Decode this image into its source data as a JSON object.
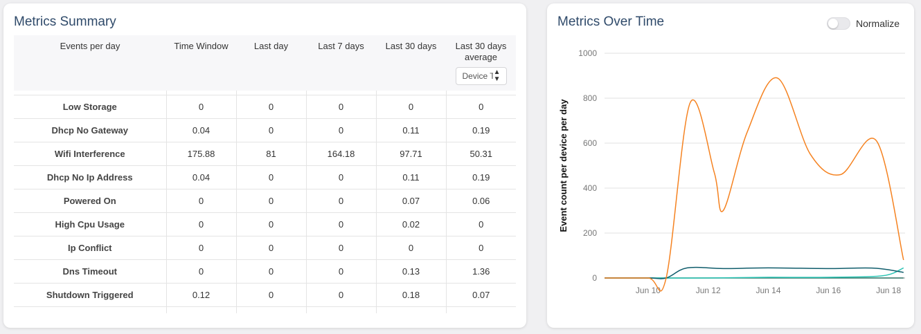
{
  "summary": {
    "title": "Metrics Summary",
    "columns": [
      "Events per day",
      "Time Window",
      "Last day",
      "Last 7 days",
      "Last 30 days",
      "Last 30 days average"
    ],
    "device_select_value": "Device Type",
    "rows": [
      {
        "name": "Low Storage",
        "values": [
          "0",
          "0",
          "0",
          "0",
          "0"
        ]
      },
      {
        "name": "Dhcp No Gateway",
        "values": [
          "0.04",
          "0",
          "0",
          "0.11",
          "0.19"
        ]
      },
      {
        "name": "Wifi Interference",
        "values": [
          "175.88",
          "81",
          "164.18",
          "97.71",
          "50.31"
        ]
      },
      {
        "name": "Dhcp No Ip Address",
        "values": [
          "0.04",
          "0",
          "0",
          "0.11",
          "0.19"
        ]
      },
      {
        "name": "Powered On",
        "values": [
          "0",
          "0",
          "0",
          "0.07",
          "0.06"
        ]
      },
      {
        "name": "High Cpu Usage",
        "values": [
          "0",
          "0",
          "0",
          "0.02",
          "0"
        ]
      },
      {
        "name": "Ip Conflict",
        "values": [
          "0",
          "0",
          "0",
          "0",
          "0"
        ]
      },
      {
        "name": "Dns Timeout",
        "values": [
          "0",
          "0",
          "0",
          "0.13",
          "1.36"
        ]
      },
      {
        "name": "Shutdown Triggered",
        "values": [
          "0.12",
          "0",
          "0",
          "0.18",
          "0.07"
        ]
      }
    ]
  },
  "over_time": {
    "title": "Metrics Over Time",
    "normalize_label": "Normalize",
    "normalize_on": false
  },
  "chart_data": {
    "type": "line",
    "ylabel": "Event count per device per day",
    "xlabel": "",
    "ylim": [
      0,
      1000
    ],
    "y_ticks": [
      0,
      200,
      400,
      600,
      800,
      1000
    ],
    "x_ticks": [
      "Jun 10",
      "Jun 12",
      "Jun 14",
      "Jun 16",
      "Jun 18"
    ],
    "x_tick_days": [
      10,
      12,
      14,
      16,
      18
    ],
    "xlim_days": [
      8.55,
      18.55
    ],
    "grid": true,
    "series": [
      {
        "color": "#f58220",
        "points": [
          [
            8.55,
            0
          ],
          [
            10,
            0
          ],
          [
            10.6,
            0
          ],
          [
            11.4,
            780
          ],
          [
            12.2,
            470
          ],
          [
            12.5,
            300
          ],
          [
            13.3,
            650
          ],
          [
            14.3,
            890
          ],
          [
            15.4,
            550
          ],
          [
            16.4,
            460
          ],
          [
            17.6,
            610
          ],
          [
            18.5,
            80
          ]
        ]
      },
      {
        "color": "#0e5c6b",
        "points": [
          [
            8.55,
            0
          ],
          [
            10,
            0
          ],
          [
            10.6,
            0
          ],
          [
            11.3,
            45
          ],
          [
            12.5,
            42
          ],
          [
            14,
            45
          ],
          [
            16,
            42
          ],
          [
            17.5,
            44
          ],
          [
            18.5,
            25
          ]
        ]
      },
      {
        "color": "#2bc4b4",
        "points": [
          [
            8.55,
            0
          ],
          [
            10,
            0
          ],
          [
            12,
            0
          ],
          [
            14,
            3
          ],
          [
            16,
            3
          ],
          [
            17.8,
            10
          ],
          [
            18.5,
            45
          ]
        ]
      },
      {
        "color": "#2a6f60",
        "points": [
          [
            8.55,
            0
          ],
          [
            10,
            0
          ],
          [
            14,
            0
          ],
          [
            16,
            0
          ],
          [
            18.5,
            0
          ]
        ]
      }
    ]
  }
}
